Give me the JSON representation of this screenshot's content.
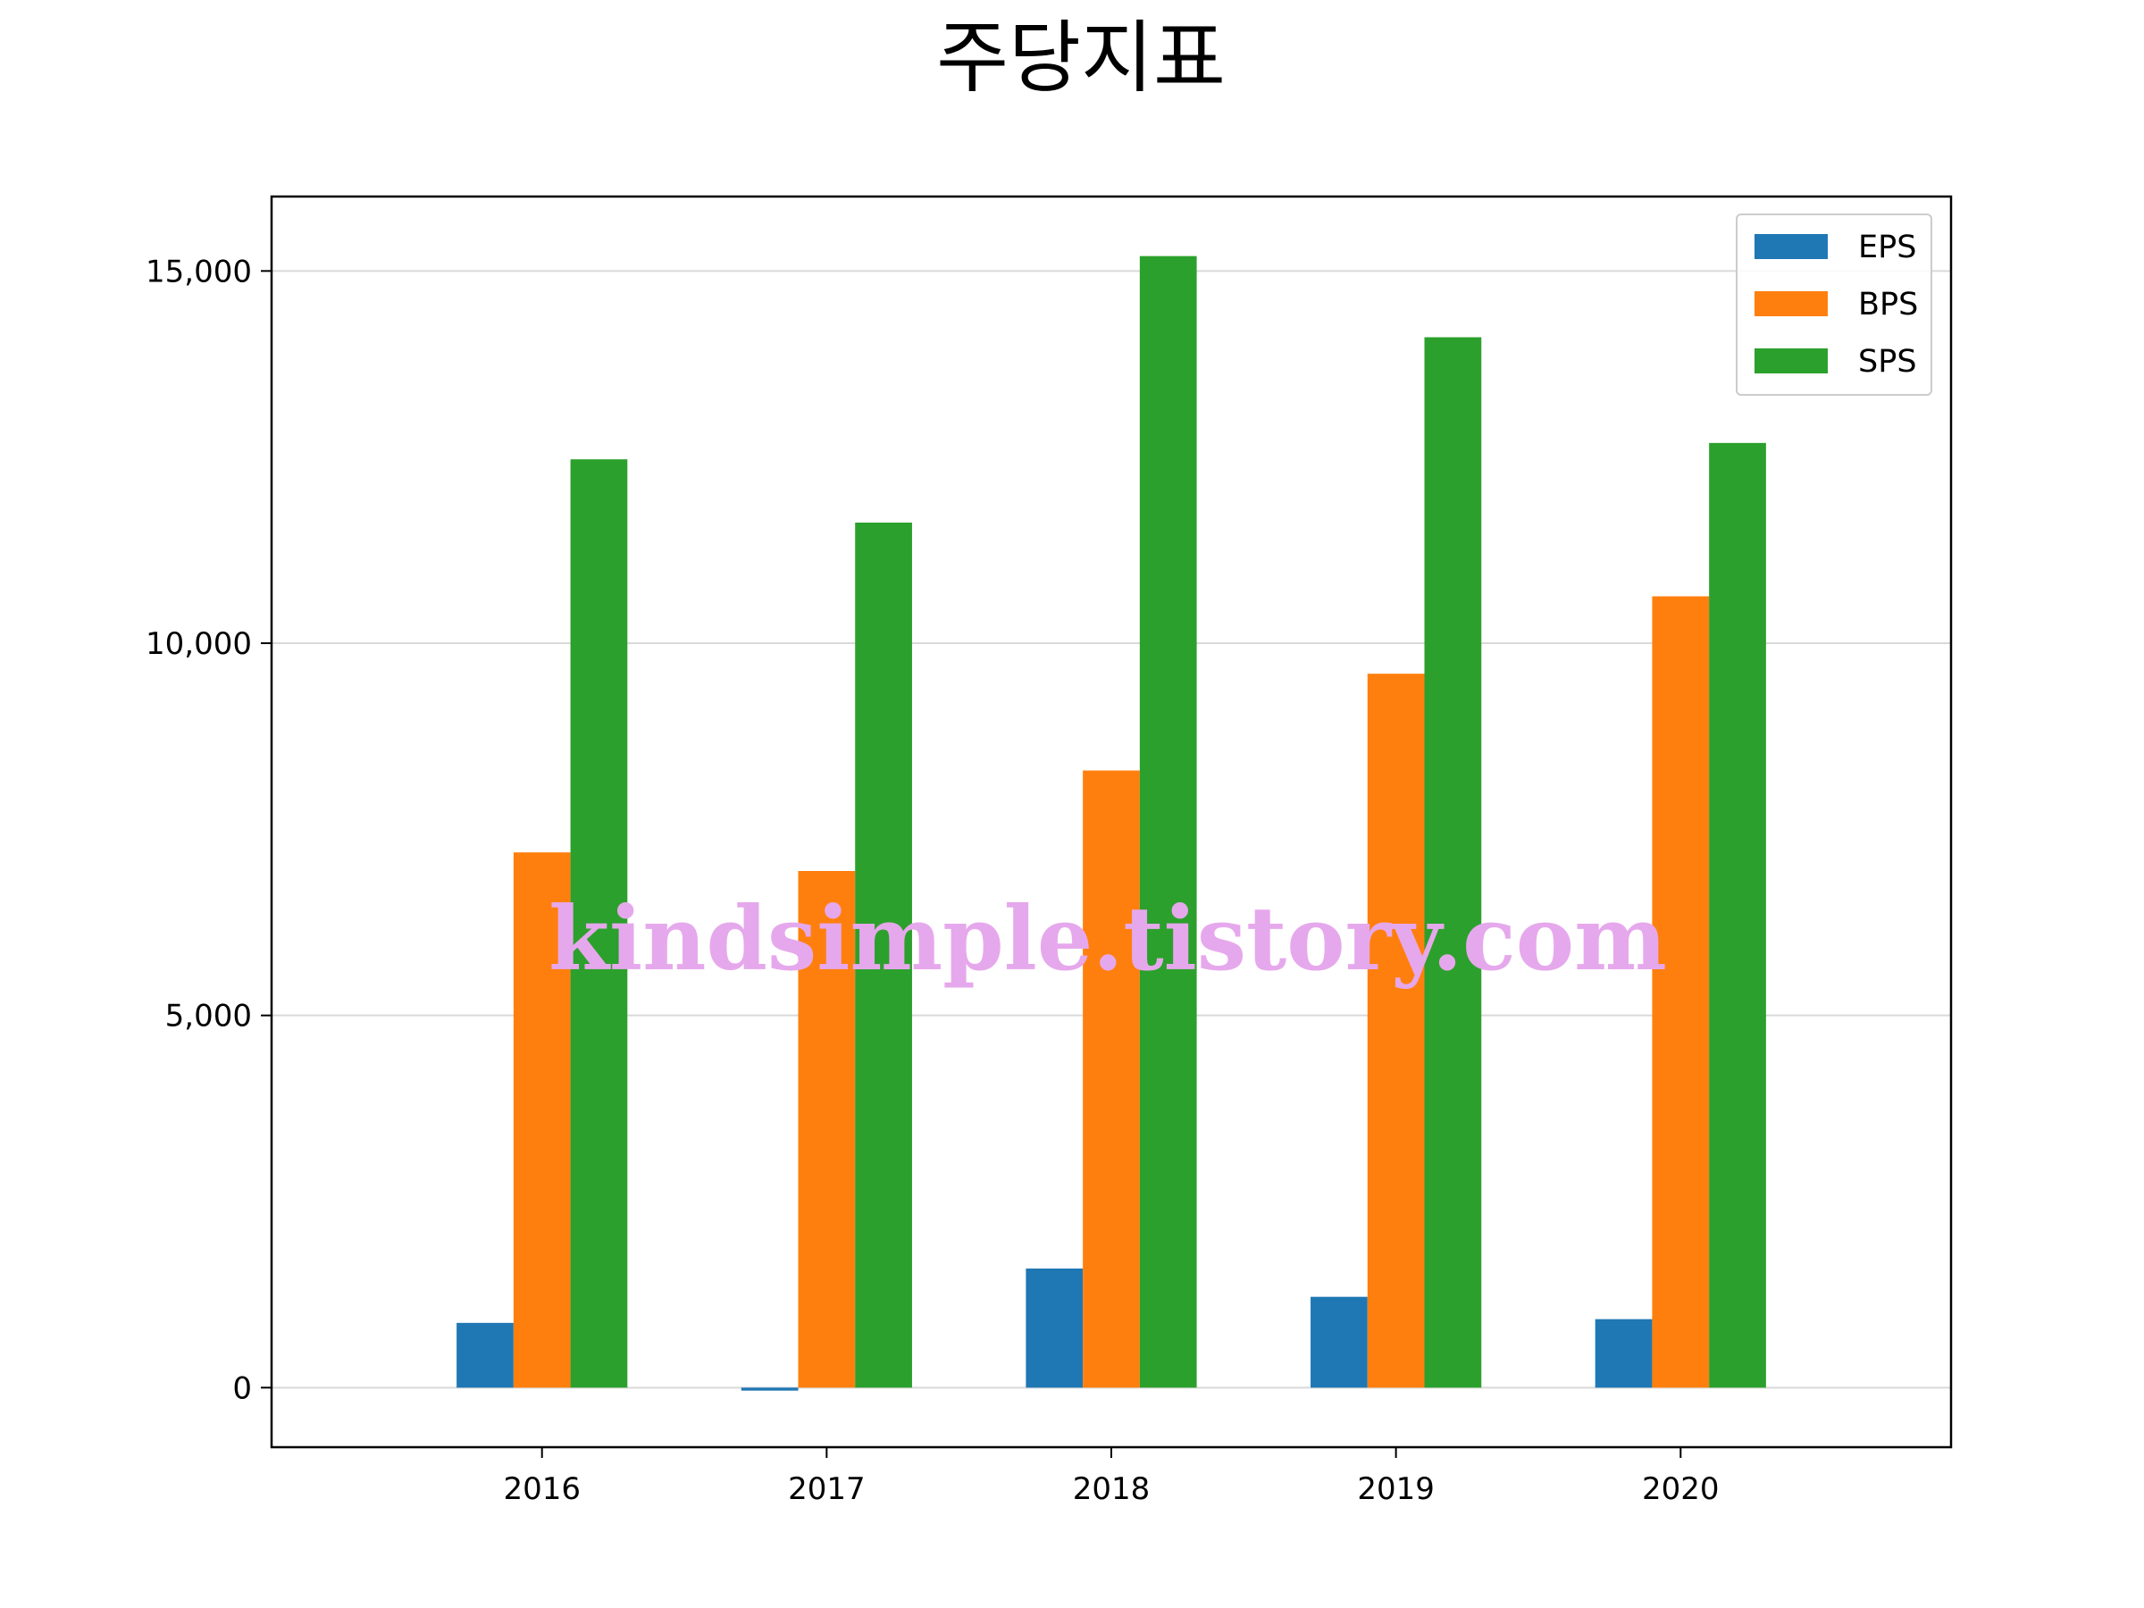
{
  "chart_data": {
    "type": "bar",
    "title": "주당지표",
    "xlabel": "",
    "ylabel": "",
    "categories": [
      "2016",
      "2017",
      "2018",
      "2019",
      "2020"
    ],
    "series": [
      {
        "name": "EPS",
        "color": "#1f77b4",
        "values": [
          870,
          -40,
          1600,
          1220,
          920
        ]
      },
      {
        "name": "BPS",
        "color": "#ff7f0e",
        "values": [
          7190,
          6940,
          8290,
          9590,
          10630
        ]
      },
      {
        "name": "SPS",
        "color": "#2ca02c",
        "values": [
          12470,
          11620,
          15200,
          14110,
          12690
        ]
      }
    ],
    "ylim": [
      -800,
      16000
    ],
    "yticks": [
      0,
      5000,
      10000,
      15000
    ],
    "ytick_labels": [
      "0",
      "5,000",
      "10,000",
      "15,000"
    ],
    "grid": "horizontal",
    "legend_position": "top-right"
  },
  "watermark": "kindsimple.tistory.com"
}
